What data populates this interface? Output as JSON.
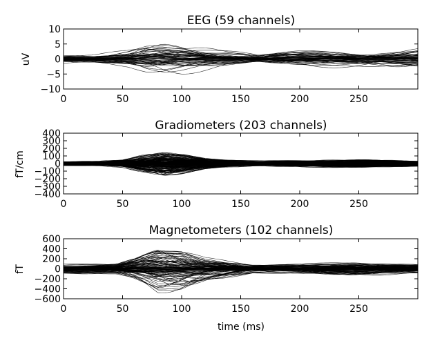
{
  "chart_data": [
    {
      "type": "line",
      "title": "EEG (59 channels)",
      "xlabel": "",
      "ylabel": "uV",
      "xlim": [
        0,
        300
      ],
      "ylim": [
        -10,
        10
      ],
      "x_ticks": [
        0,
        50,
        100,
        150,
        200,
        250
      ],
      "y_ticks": [
        -10,
        -5,
        0,
        5,
        10
      ],
      "y_tick_labels": [
        "−10",
        "−5",
        "0",
        "5",
        "10"
      ],
      "n_channels": 59,
      "grid": false,
      "envelope": [
        [
          0,
          1.5
        ],
        [
          15,
          1.5
        ],
        [
          25,
          1.5
        ],
        [
          40,
          2.5
        ],
        [
          55,
          3.5
        ],
        [
          70,
          5.5
        ],
        [
          85,
          6.0
        ],
        [
          100,
          5.5
        ],
        [
          115,
          4.5
        ],
        [
          130,
          3.5
        ],
        [
          150,
          2.5
        ],
        [
          165,
          1.5
        ],
        [
          180,
          2.5
        ],
        [
          200,
          3.0
        ],
        [
          220,
          3.0
        ],
        [
          250,
          3.0
        ],
        [
          275,
          3.5
        ],
        [
          300,
          4.5
        ]
      ]
    },
    {
      "type": "line",
      "title": "Gradiometers (203 channels)",
      "xlabel": "",
      "ylabel": "fT/cm",
      "xlim": [
        0,
        300
      ],
      "ylim": [
        -400,
        400
      ],
      "x_ticks": [
        0,
        50,
        100,
        150,
        200,
        250
      ],
      "y_ticks": [
        -400,
        -300,
        -200,
        -100,
        0,
        100,
        200,
        300,
        400
      ],
      "y_tick_labels": [
        "−400",
        "−300",
        "−200",
        "−100",
        "0",
        "100",
        "200",
        "300",
        "400"
      ],
      "n_channels": 203,
      "grid": false,
      "envelope": [
        [
          0,
          30
        ],
        [
          30,
          35
        ],
        [
          50,
          60
        ],
        [
          65,
          120
        ],
        [
          85,
          190
        ],
        [
          100,
          150
        ],
        [
          120,
          80
        ],
        [
          140,
          50
        ],
        [
          170,
          40
        ],
        [
          200,
          50
        ],
        [
          250,
          60
        ],
        [
          300,
          40
        ]
      ]
    },
    {
      "type": "line",
      "title": "Magnetometers (102 channels)",
      "xlabel": "time (ms)",
      "ylabel": "fT",
      "xlim": [
        0,
        300
      ],
      "ylim": [
        -600,
        600
      ],
      "x_ticks": [
        0,
        50,
        100,
        150,
        200,
        250
      ],
      "y_ticks": [
        -600,
        -400,
        -200,
        0,
        200,
        400,
        600
      ],
      "y_tick_labels": [
        "−600",
        "−400",
        "−200",
        "0",
        "200",
        "400",
        "600"
      ],
      "n_channels": 102,
      "grid": false,
      "envelope": [
        [
          0,
          100
        ],
        [
          25,
          110
        ],
        [
          45,
          120
        ],
        [
          60,
          250
        ],
        [
          80,
          520
        ],
        [
          100,
          480
        ],
        [
          120,
          280
        ],
        [
          140,
          180
        ],
        [
          160,
          100
        ],
        [
          200,
          100
        ],
        [
          245,
          160
        ],
        [
          280,
          120
        ],
        [
          300,
          100
        ]
      ]
    }
  ]
}
